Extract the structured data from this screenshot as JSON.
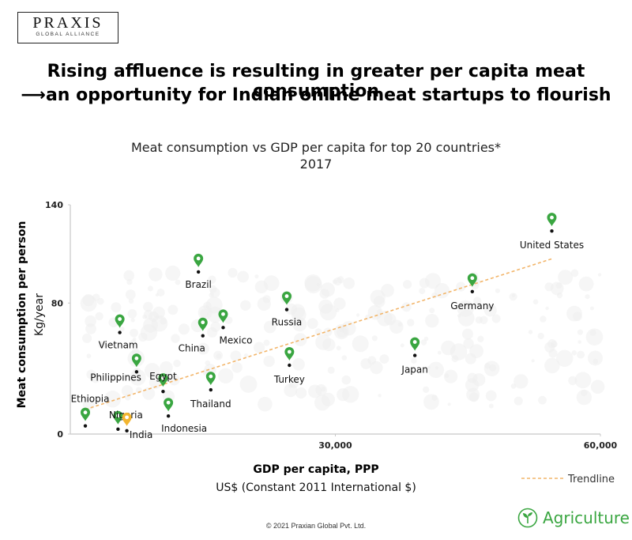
{
  "logo": {
    "main": "PRAXIS",
    "sub": "GLOBAL ALLIANCE"
  },
  "headline": {
    "line1": "Rising affluence is resulting in greater per capita meat consumption",
    "line2": "⟶an opportunity for Indian online meat startups to flourish"
  },
  "chart_data": {
    "type": "scatter",
    "title": "Meat consumption vs GDP per capita for top 20 countries*",
    "subtitle": "2017",
    "xlabel": "GDP per capita, PPP",
    "xlabel_sub": "US$ (Constant 2011 International $)",
    "ylabel": "Meat consumption per person",
    "ylabel_sub": "Kg/year",
    "xlim": [
      0,
      60000
    ],
    "ylim": [
      0,
      140
    ],
    "x_ticks": [
      {
        "value": 30000,
        "label": "30,000"
      },
      {
        "value": 60000,
        "label": "60,000"
      }
    ],
    "y_ticks": [
      {
        "value": 0,
        "label": "0"
      },
      {
        "value": 80,
        "label": "80"
      },
      {
        "value": 140,
        "label": "140"
      }
    ],
    "points": [
      {
        "name": "United States",
        "x": 54500,
        "y": 124,
        "highlight": false
      },
      {
        "name": "Germany",
        "x": 45500,
        "y": 87,
        "highlight": false
      },
      {
        "name": "Japan",
        "x": 39000,
        "y": 48,
        "highlight": false
      },
      {
        "name": "Russia",
        "x": 24500,
        "y": 76,
        "highlight": false
      },
      {
        "name": "Turkey",
        "x": 24800,
        "y": 42,
        "highlight": false
      },
      {
        "name": "Brazil",
        "x": 14500,
        "y": 99,
        "highlight": false
      },
      {
        "name": "Mexico",
        "x": 17300,
        "y": 65,
        "highlight": false
      },
      {
        "name": "China",
        "x": 15000,
        "y": 60,
        "highlight": false
      },
      {
        "name": "Thailand",
        "x": 15900,
        "y": 27,
        "highlight": false
      },
      {
        "name": "Vietnam",
        "x": 5600,
        "y": 62,
        "highlight": false
      },
      {
        "name": "Philippines",
        "x": 7500,
        "y": 38,
        "highlight": false
      },
      {
        "name": "Egypt",
        "x": 10500,
        "y": 26,
        "highlight": false
      },
      {
        "name": "Indonesia",
        "x": 11100,
        "y": 11,
        "highlight": false
      },
      {
        "name": "Ethiopia",
        "x": 1700,
        "y": 5,
        "highlight": false
      },
      {
        "name": "Nigeria",
        "x": 5400,
        "y": 3,
        "highlight": false
      },
      {
        "name": "India",
        "x": 6400,
        "y": 2,
        "highlight": true
      }
    ],
    "trendline": {
      "name": "Trendline",
      "x": [
        1700,
        54500
      ],
      "y": [
        15,
        107
      ]
    },
    "grid": false,
    "legend_position": "bottom-right",
    "colors": {
      "marker": "#3aa641",
      "highlight": "#f2b530",
      "trendline": "#f2b56a",
      "axis": "#c8c8c8"
    }
  },
  "footer": {
    "copyright": "© 2021 Praxian Global Pvt. Ltd.",
    "brand": "Agriculture",
    "brand_icon": "plant-in-circle-icon"
  }
}
